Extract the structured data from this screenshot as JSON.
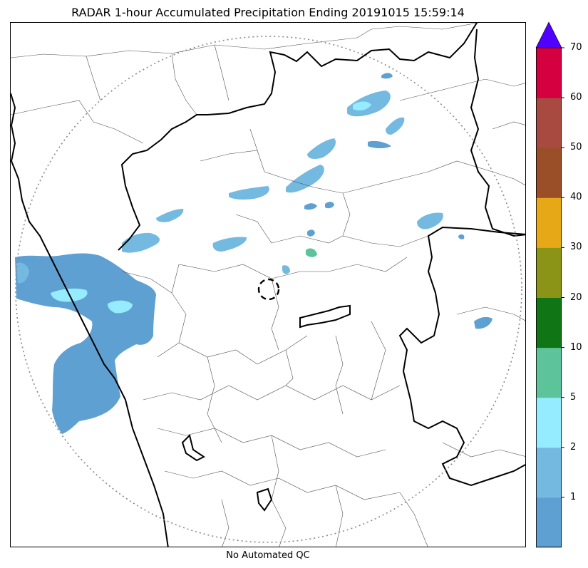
{
  "title": "RADAR 1-hour Accumulated Precipitation Ending 20191015 15:59:14",
  "footer": "No Automated QC",
  "colorbar": {
    "colors": [
      "#5fa0d3",
      "#74b9e0",
      "#96ecff",
      "#5cc39a",
      "#107515",
      "#8b9416",
      "#e6a817",
      "#9b4f28",
      "#a84a40",
      "#d4003f"
    ],
    "extend_color": "#5000ff",
    "tick_labels": [
      "1",
      "2",
      "5",
      "10",
      "20",
      "30",
      "40",
      "50",
      "60",
      "70"
    ]
  },
  "map_colors": {
    "boundary_bold": "#000000",
    "boundary_thin": "#505050",
    "range_ring": "#888888"
  }
}
